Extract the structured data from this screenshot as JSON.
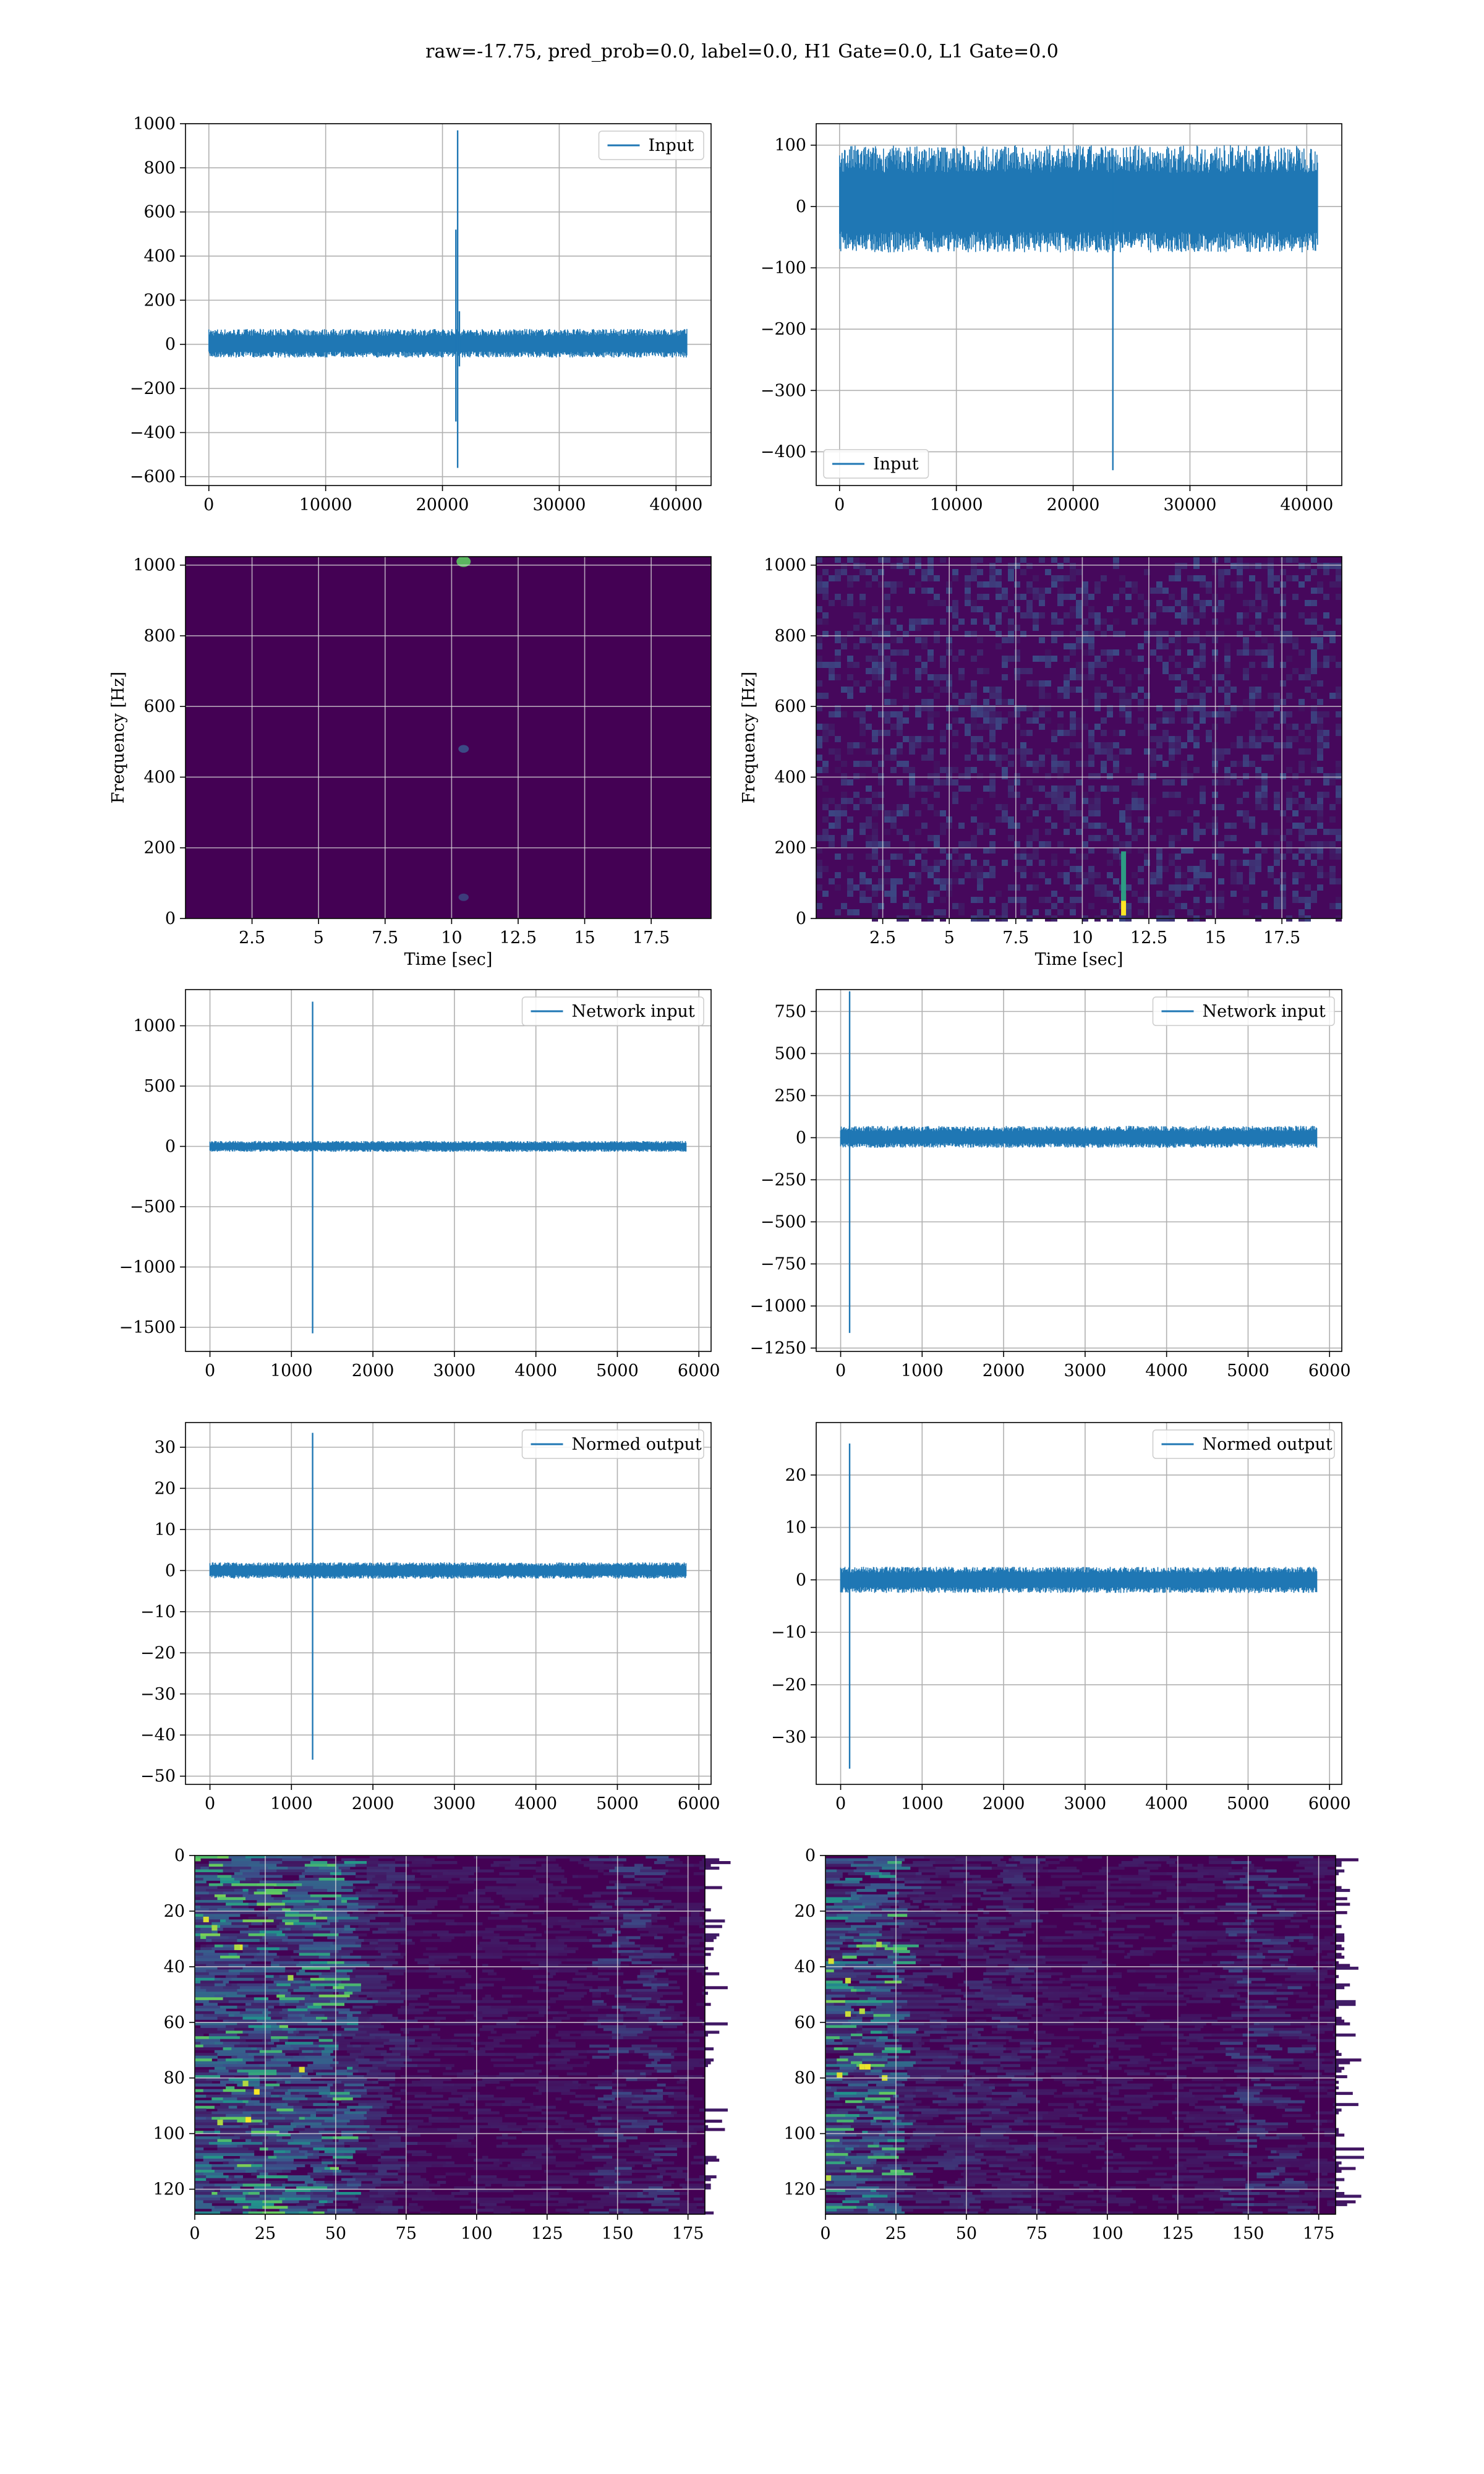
{
  "figure": {
    "suptitle": "raw=-17.75, pred_prob=0.0, label=0.0, H1 Gate=0.0, L1 Gate=0.0",
    "line_color": "#1f77b4",
    "heat_colors": [
      "#440154",
      "#3b528b",
      "#21918c",
      "#5ec962",
      "#fde725"
    ]
  },
  "chart_data": [
    {
      "id": "input-h1",
      "type": "line",
      "title": "",
      "xlabel": "",
      "ylabel": "",
      "xlim": [
        -2000,
        43000
      ],
      "ylim": [
        -640,
        1000
      ],
      "xticks": [
        0,
        10000,
        20000,
        30000,
        40000
      ],
      "yticks": [
        -600,
        -400,
        -200,
        0,
        200,
        400,
        600,
        800,
        1000
      ],
      "grid": true,
      "legend": {
        "label": "Input",
        "loc": "upper right"
      },
      "series": [
        {
          "name": "Input",
          "x_range": [
            0,
            40960
          ],
          "noise_band": [
            -60,
            70
          ],
          "features": [
            {
              "x": 21300,
              "max": 970,
              "min": -560
            },
            {
              "x": 21150,
              "max": 520,
              "min": -350
            },
            {
              "x": 21450,
              "max": 150,
              "min": -100
            }
          ]
        }
      ]
    },
    {
      "id": "input-l1",
      "type": "line",
      "title": "",
      "xlabel": "",
      "ylabel": "",
      "xlim": [
        -2000,
        43000
      ],
      "ylim": [
        -455,
        135
      ],
      "xticks": [
        0,
        10000,
        20000,
        30000,
        40000
      ],
      "yticks": [
        -400,
        -300,
        -200,
        -100,
        0,
        100
      ],
      "grid": true,
      "legend": {
        "label": "Input",
        "loc": "lower left"
      },
      "series": [
        {
          "name": "Input",
          "x_range": [
            0,
            40960
          ],
          "noise_band": [
            -75,
            100
          ],
          "features": [
            {
              "x": 23400,
              "max": 60,
              "min": -430
            }
          ]
        }
      ]
    },
    {
      "id": "spectrogram-h1",
      "type": "heatmap",
      "title": "",
      "xlabel": "Time [sec]",
      "ylabel": "Frequency [Hz]",
      "xlim": [
        0,
        19.75
      ],
      "ylim": [
        0,
        1024
      ],
      "xticks": [
        2.5,
        5.0,
        7.5,
        10.0,
        12.5,
        15.0,
        17.5
      ],
      "yticks": [
        0,
        200,
        400,
        600,
        800,
        1000
      ],
      "grid": true,
      "background": "#440154",
      "hotspots": [
        {
          "t": 10.45,
          "f": 1010,
          "level": 0.75
        },
        {
          "t": 10.45,
          "f": 480,
          "level": 0.25
        },
        {
          "t": 10.45,
          "f": 60,
          "level": 0.2
        }
      ]
    },
    {
      "id": "spectrogram-l1",
      "type": "heatmap",
      "title": "",
      "xlabel": "Time [sec]",
      "ylabel": "Frequency [Hz]",
      "xlim": [
        0,
        19.75
      ],
      "ylim": [
        0,
        1024
      ],
      "xticks": [
        2.5,
        5.0,
        7.5,
        10.0,
        12.5,
        15.0,
        17.5
      ],
      "yticks": [
        0,
        200,
        400,
        600,
        800,
        1000
      ],
      "grid": true,
      "background": "#46085c",
      "hotspots": [
        {
          "t": 11.55,
          "f": 40,
          "level": 1.0
        },
        {
          "t": 11.55,
          "f": 120,
          "level": 0.55
        }
      ]
    },
    {
      "id": "network-input-h1",
      "type": "line",
      "title": "",
      "xlabel": "",
      "ylabel": "",
      "xlim": [
        -300,
        6150
      ],
      "ylim": [
        -1700,
        1300
      ],
      "xticks": [
        0,
        1000,
        2000,
        3000,
        4000,
        5000,
        6000
      ],
      "yticks": [
        -1500,
        -1000,
        -500,
        0,
        500,
        1000
      ],
      "grid": true,
      "legend": {
        "label": "Network input",
        "loc": "upper right"
      },
      "series": [
        {
          "name": "Network input",
          "x_range": [
            0,
            5850
          ],
          "noise_band": [
            -45,
            45
          ],
          "features": [
            {
              "x": 1260,
              "max": 1200,
              "min": -1550
            }
          ]
        }
      ]
    },
    {
      "id": "network-input-l1",
      "type": "line",
      "title": "",
      "xlabel": "",
      "ylabel": "",
      "xlim": [
        -300,
        6150
      ],
      "ylim": [
        -1270,
        880
      ],
      "xticks": [
        0,
        1000,
        2000,
        3000,
        4000,
        5000,
        6000
      ],
      "yticks": [
        -1250,
        -1000,
        -750,
        -500,
        -250,
        0,
        250,
        500,
        750
      ],
      "grid": true,
      "legend": {
        "label": "Network input",
        "loc": "upper right"
      },
      "series": [
        {
          "name": "Network input",
          "x_range": [
            0,
            5850
          ],
          "noise_band": [
            -60,
            70
          ],
          "features": [
            {
              "x": 110,
              "max": 870,
              "min": -1160
            }
          ]
        }
      ]
    },
    {
      "id": "normed-output-h1",
      "type": "line",
      "title": "",
      "xlabel": "",
      "ylabel": "",
      "xlim": [
        -300,
        6150
      ],
      "ylim": [
        -52,
        36
      ],
      "xticks": [
        0,
        1000,
        2000,
        3000,
        4000,
        5000,
        6000
      ],
      "yticks": [
        -50,
        -40,
        -30,
        -20,
        -10,
        0,
        10,
        20,
        30
      ],
      "grid": true,
      "legend": {
        "label": "Normed output",
        "loc": "upper right"
      },
      "series": [
        {
          "name": "Normed output",
          "x_range": [
            0,
            5850
          ],
          "noise_band": [
            -2,
            2
          ],
          "features": [
            {
              "x": 1260,
              "max": 33.5,
              "min": -46
            }
          ]
        }
      ]
    },
    {
      "id": "normed-output-l1",
      "type": "line",
      "title": "",
      "xlabel": "",
      "ylabel": "",
      "xlim": [
        -300,
        6150
      ],
      "ylim": [
        -39,
        30
      ],
      "xticks": [
        0,
        1000,
        2000,
        3000,
        4000,
        5000,
        6000
      ],
      "yticks": [
        -30,
        -20,
        -10,
        0,
        10,
        20
      ],
      "grid": true,
      "legend": {
        "label": "Normed output",
        "loc": "upper right"
      },
      "series": [
        {
          "name": "Normed output",
          "x_range": [
            0,
            5850
          ],
          "noise_band": [
            -2.5,
            2.5
          ],
          "features": [
            {
              "x": 110,
              "max": 26,
              "min": -36
            }
          ]
        }
      ]
    },
    {
      "id": "feature-map-h1",
      "type": "heatmap",
      "title": "",
      "xlabel": "",
      "ylabel": "",
      "xlim": [
        0,
        181
      ],
      "ylim": [
        129,
        0
      ],
      "xticks": [
        0,
        25,
        50,
        75,
        100,
        125,
        150,
        175
      ],
      "yticks": [
        0,
        20,
        40,
        60,
        80,
        100,
        120
      ],
      "grid": true,
      "rows": 129,
      "cols": 181,
      "active_columns": [
        0,
        55
      ]
    },
    {
      "id": "feature-map-l1",
      "type": "heatmap",
      "title": "",
      "xlabel": "",
      "ylabel": "",
      "xlim": [
        0,
        181
      ],
      "ylim": [
        129,
        0
      ],
      "xticks": [
        0,
        25,
        50,
        75,
        100,
        125,
        150,
        175
      ],
      "yticks": [
        0,
        20,
        40,
        60,
        80,
        100,
        120
      ],
      "grid": true,
      "rows": 129,
      "cols": 181,
      "active_columns": [
        0,
        25
      ]
    }
  ]
}
